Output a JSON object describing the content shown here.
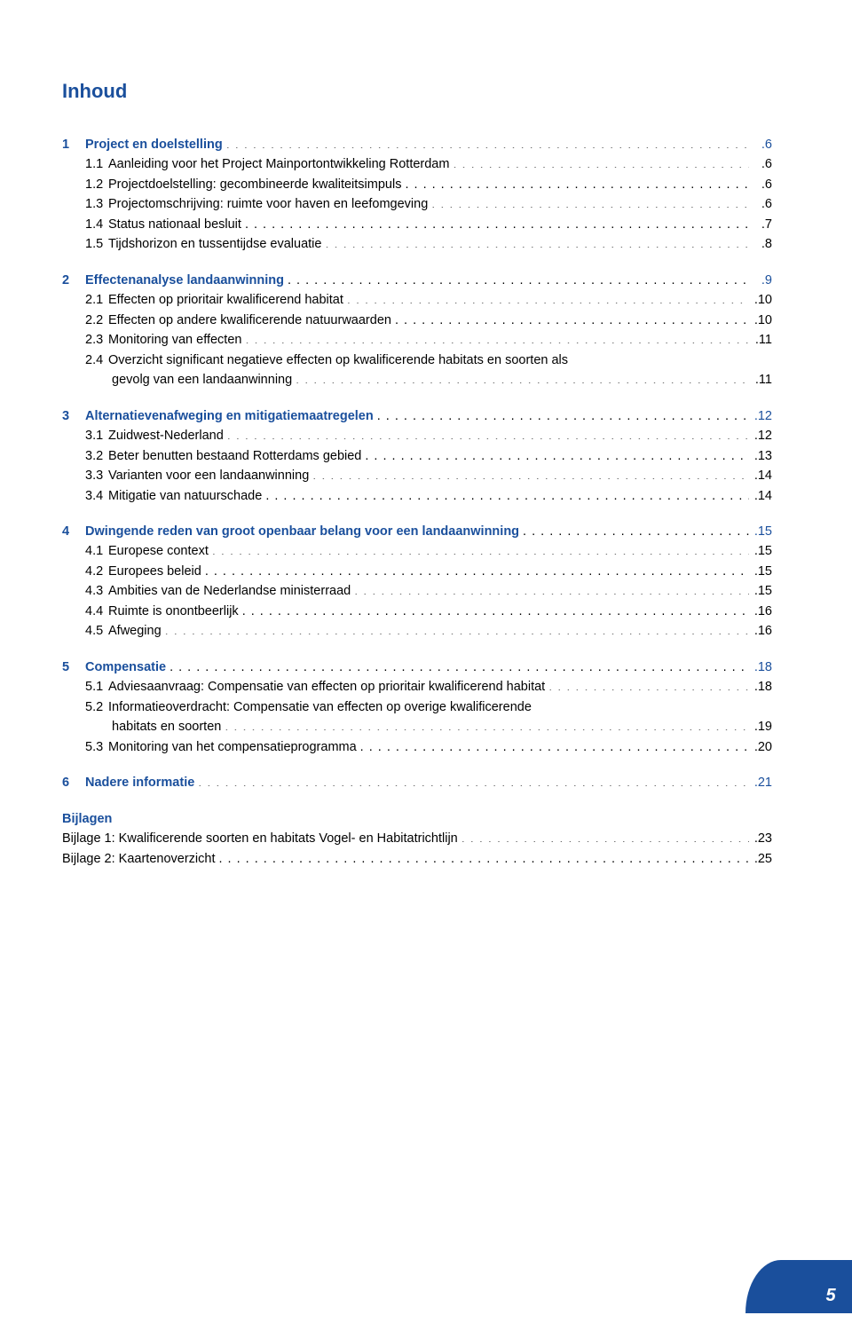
{
  "colors": {
    "accent": "#1a4f9c",
    "text": "#000000",
    "background": "#ffffff"
  },
  "title": "Inhoud",
  "title_color": "#1a4f9c",
  "page_number": "5",
  "sections": [
    {
      "num": "1",
      "title": "Project en doelstelling",
      "page": "6",
      "bold": true,
      "color": "#1a4f9c",
      "items": [
        {
          "num": "1.1",
          "label": "Aanleiding voor het Project Mainportontwikkeling Rotterdam",
          "page": "6"
        },
        {
          "num": "1.2",
          "label": "Projectdoelstelling: gecombineerde kwaliteitsimpuls",
          "page": "6"
        },
        {
          "num": "1.3",
          "label": "Projectomschrijving: ruimte voor haven en leefomgeving",
          "page": "6"
        },
        {
          "num": "1.4",
          "label": "Status nationaal besluit",
          "page": "7"
        },
        {
          "num": "1.5",
          "label": "Tijdshorizon en tussentijdse evaluatie",
          "page": "8"
        }
      ]
    },
    {
      "num": "2",
      "title": "Effectenanalyse landaanwinning",
      "page": "9",
      "bold": true,
      "color": "#1a4f9c",
      "items": [
        {
          "num": "2.1",
          "label": "Effecten op prioritair kwalificerend habitat",
          "page": "10"
        },
        {
          "num": "2.2",
          "label": "Effecten op andere kwalificerende natuurwaarden",
          "page": "10"
        },
        {
          "num": "2.3",
          "label": "Monitoring van effecten",
          "page": "11"
        },
        {
          "num": "2.4",
          "label": "Overzicht significant negatieve effecten op kwalificerende habitats en soorten als",
          "cont": "gevolg van een landaanwinning",
          "page": "11"
        }
      ]
    },
    {
      "num": "3",
      "title": "Alternatievenafweging en mitigatiemaatregelen",
      "page": "12",
      "bold": true,
      "color": "#1a4f9c",
      "items": [
        {
          "num": "3.1",
          "label": "Zuidwest-Nederland",
          "page": "12"
        },
        {
          "num": "3.2",
          "label": "Beter benutten bestaand Rotterdams gebied",
          "page": "13"
        },
        {
          "num": "3.3",
          "label": "Varianten voor een landaanwinning",
          "page": "14"
        },
        {
          "num": "3.4",
          "label": "Mitigatie van natuurschade",
          "page": "14"
        }
      ]
    },
    {
      "num": "4",
      "title": "Dwingende reden van groot openbaar belang voor een landaanwinning",
      "page": "15",
      "bold": true,
      "color": "#1a4f9c",
      "items": [
        {
          "num": "4.1",
          "label": "Europese context",
          "page": "15"
        },
        {
          "num": "4.2",
          "label": "Europees beleid",
          "page": "15"
        },
        {
          "num": "4.3",
          "label": "Ambities van de Nederlandse ministerraad",
          "page": "15"
        },
        {
          "num": "4.4",
          "label": "Ruimte is onontbeerlijk",
          "page": "16"
        },
        {
          "num": "4.5",
          "label": "Afweging",
          "page": "16"
        }
      ]
    },
    {
      "num": "5",
      "title": "Compensatie",
      "page": "18",
      "bold": true,
      "color": "#1a4f9c",
      "items": [
        {
          "num": "5.1",
          "label_prefix": "Adviesaanvraag:",
          "label": " Compensatie van effecten op prioritair kwalificerend habitat",
          "page": "18",
          "prefix_italic": true
        },
        {
          "num": "5.2",
          "label_prefix": "Informatieoverdracht:",
          "label": " Compensatie van effecten op overige kwalificerende",
          "cont": "habitats en soorten",
          "page": "19",
          "prefix_italic": true
        },
        {
          "num": "5.3",
          "label": "Monitoring van het compensatieprogramma",
          "page": "20"
        }
      ]
    },
    {
      "num": "6",
      "title": "Nadere informatie",
      "page": "21",
      "bold": true,
      "color": "#1a4f9c",
      "items": []
    }
  ],
  "bijlagen": {
    "title": "Bijlagen",
    "color": "#1a4f9c",
    "items": [
      {
        "label": "Bijlage 1: Kwalificerende soorten en habitats Vogel- en Habitatrichtlijn",
        "page": "23"
      },
      {
        "label": "Bijlage 2: Kaartenoverzicht",
        "page": "25"
      }
    ]
  }
}
